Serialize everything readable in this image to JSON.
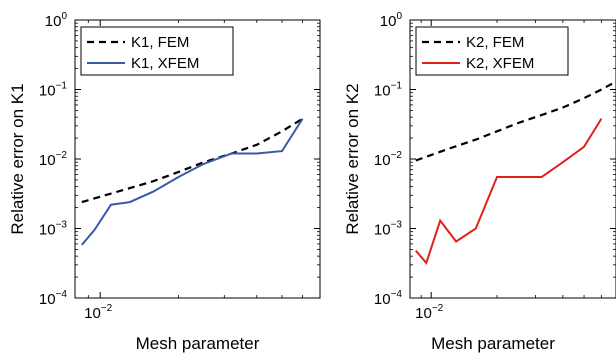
{
  "chart_data": [
    {
      "type": "line",
      "title": "",
      "xlabel": "Mesh parameter",
      "ylabel": "Relative error on K1",
      "xscale": "log",
      "yscale": "log",
      "xlim": [
        0.008,
        0.07
      ],
      "ylim": [
        0.0001,
        1
      ],
      "grid": false,
      "legend_position": "top-left",
      "ytick_labels": [
        {
          "base": "10",
          "exp": "0",
          "value": 1
        },
        {
          "base": "10",
          "exp": "−1",
          "value": 0.1
        },
        {
          "base": "10",
          "exp": "−2",
          "value": 0.01
        },
        {
          "base": "10",
          "exp": "−3",
          "value": 0.001
        },
        {
          "base": "10",
          "exp": "−4",
          "value": 0.0001
        }
      ],
      "xtick_labels": [
        {
          "base": "10",
          "exp": "−2",
          "value": 0.01
        }
      ],
      "series": [
        {
          "name": "K1, FEM",
          "color": "#000000",
          "dash": "dashed",
          "x": [
            0.0085,
            0.012,
            0.016,
            0.02,
            0.025,
            0.032,
            0.04,
            0.05,
            0.06
          ],
          "y": [
            0.0024,
            0.0035,
            0.0048,
            0.0065,
            0.009,
            0.012,
            0.016,
            0.025,
            0.038
          ]
        },
        {
          "name": "K1, XFEM",
          "color": "#3a5aa8",
          "dash": "solid",
          "x": [
            0.0085,
            0.0095,
            0.011,
            0.013,
            0.016,
            0.02,
            0.025,
            0.032,
            0.04,
            0.05,
            0.06
          ],
          "y": [
            0.00058,
            0.00095,
            0.0022,
            0.0024,
            0.0034,
            0.0055,
            0.0085,
            0.012,
            0.012,
            0.013,
            0.038
          ]
        }
      ]
    },
    {
      "type": "line",
      "title": "",
      "xlabel": "Mesh parameter",
      "ylabel": "Relative error on K2",
      "xscale": "log",
      "yscale": "log",
      "xlim": [
        0.008,
        0.07
      ],
      "ylim": [
        0.0001,
        1
      ],
      "grid": false,
      "legend_position": "top-left",
      "ytick_labels": [
        {
          "base": "10",
          "exp": "0",
          "value": 1
        },
        {
          "base": "10",
          "exp": "−1",
          "value": 0.1
        },
        {
          "base": "10",
          "exp": "−2",
          "value": 0.01
        },
        {
          "base": "10",
          "exp": "−3",
          "value": 0.001
        },
        {
          "base": "10",
          "exp": "−4",
          "value": 0.0001
        }
      ],
      "xtick_labels": [
        {
          "base": "10",
          "exp": "−2",
          "value": 0.01
        }
      ],
      "series": [
        {
          "name": "K2, FEM",
          "color": "#000000",
          "dash": "dashed",
          "x": [
            0.0085,
            0.012,
            0.016,
            0.02,
            0.025,
            0.032,
            0.04,
            0.05,
            0.06,
            0.07
          ],
          "y": [
            0.0095,
            0.014,
            0.019,
            0.025,
            0.033,
            0.043,
            0.055,
            0.075,
            0.1,
            0.13
          ]
        },
        {
          "name": "K2, XFEM",
          "color": "#e0201b",
          "dash": "solid",
          "x": [
            0.0085,
            0.0095,
            0.011,
            0.013,
            0.016,
            0.02,
            0.025,
            0.032,
            0.04,
            0.05,
            0.06
          ],
          "y": [
            0.00048,
            0.00032,
            0.0013,
            0.00065,
            0.001,
            0.0055,
            0.0055,
            0.0055,
            0.009,
            0.015,
            0.038
          ]
        }
      ]
    }
  ]
}
